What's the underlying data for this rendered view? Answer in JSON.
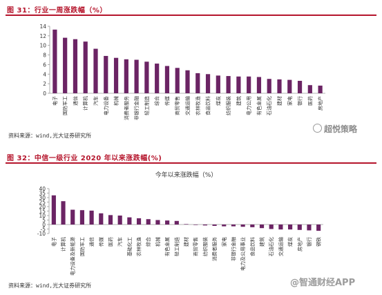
{
  "figures": [
    {
      "title": "图 31：行业一周涨跌幅（%）",
      "source": "资料来源：wind,光大证券研究所"
    },
    {
      "title": "图 32：中信一级行业 2020 年以来涨跌幅(%)",
      "source": "资料来源：wind,光大证券研究所"
    }
  ],
  "watermarks": {
    "top": "超悦策略",
    "bottom": "@智通财经APP"
  },
  "colors": {
    "bar": "#6b2464",
    "title": "#b5142b",
    "axis": "#9a9a9a"
  },
  "chart_data": [
    {
      "type": "bar",
      "title": "",
      "xlabel": "",
      "ylabel": "",
      "ylim": [
        0,
        14
      ],
      "yticks": [
        0,
        2,
        4,
        6,
        8,
        10,
        12,
        14
      ],
      "grid": false,
      "categories": [
        "电子",
        "国防军工",
        "通信",
        "计算机",
        "汽车",
        "电力设备",
        "机械",
        "消费者服务",
        "非银行金融",
        "轻工制造",
        "综合",
        "传媒",
        "商贸零售",
        "交通运输",
        "农林牧渔",
        "食品饮料",
        "煤炭",
        "纺织服装",
        "建筑",
        "电力公用",
        "有色金属",
        "石油石化",
        "建材",
        "家电",
        "银行",
        "医药",
        "房地产"
      ],
      "values": [
        13.3,
        11.6,
        11.3,
        10.8,
        9.3,
        7.8,
        7.4,
        7.1,
        7.0,
        6.6,
        6.2,
        5.7,
        5.3,
        4.8,
        4.2,
        4.0,
        3.7,
        3.6,
        3.5,
        3.5,
        3.4,
        3.0,
        2.9,
        2.8,
        2.6,
        1.7,
        1.6
      ]
    },
    {
      "type": "bar",
      "title": "今年以来涨跌幅（%）",
      "xlabel": "",
      "ylabel": "",
      "ylim": [
        -10,
        40
      ],
      "yticks": [
        -10,
        -5,
        0,
        5,
        10,
        15,
        20,
        25,
        30,
        35,
        40
      ],
      "grid": false,
      "categories": [
        "电子",
        "计算机",
        "电力设备及新能源",
        "国防军工",
        "通信",
        "传媒",
        "医药",
        "汽车",
        "基础化工",
        "农林牧渔",
        "综合",
        "机械",
        "有色金属",
        "轻工制造",
        "建材",
        "商贸零售",
        "纺织服装",
        "消费者服务",
        "家电",
        "非银行金融",
        "电力及公用事业",
        "食品饮料",
        "建筑",
        "石油石化",
        "交通运输",
        "煤炭",
        "房地产",
        "银行",
        "钢铁"
      ],
      "values": [
        32.5,
        26.0,
        16.5,
        16.0,
        15.5,
        12.5,
        10.5,
        10.0,
        8.0,
        7.0,
        6.0,
        5.0,
        4.5,
        4.0,
        0.5,
        -0.5,
        -1.0,
        -1.5,
        -2.0,
        -2.0,
        -2.5,
        -3.0,
        -4.0,
        -5.0,
        -5.5,
        -5.5,
        -6.0,
        -6.5,
        -7.0
      ]
    }
  ]
}
